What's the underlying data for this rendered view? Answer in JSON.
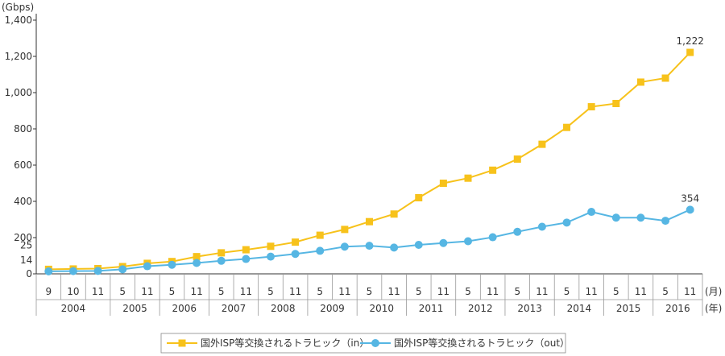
{
  "chart_data": {
    "type": "line",
    "ylabel": "(Gbps)",
    "ylim": [
      0,
      1400
    ],
    "yticks": [
      0,
      200,
      400,
      600,
      800,
      "1,000",
      "1,200",
      "1,400"
    ],
    "month_unit": "(月)",
    "year_unit": "(年)",
    "grid": false,
    "legend_position": "bottom",
    "x": [
      "9",
      "10",
      "11",
      "5",
      "11",
      "5",
      "11",
      "5",
      "11",
      "5",
      "11",
      "5",
      "11",
      "5",
      "11",
      "5",
      "11",
      "5",
      "11",
      "5",
      "11",
      "5",
      "11",
      "5",
      "11",
      "5",
      "11"
    ],
    "years": [
      {
        "label": "2004",
        "count": 3
      },
      {
        "label": "2005",
        "count": 2
      },
      {
        "label": "2006",
        "count": 2
      },
      {
        "label": "2007",
        "count": 2
      },
      {
        "label": "2008",
        "count": 2
      },
      {
        "label": "2009",
        "count": 2
      },
      {
        "label": "2010",
        "count": 2
      },
      {
        "label": "2011",
        "count": 2
      },
      {
        "label": "2012",
        "count": 2
      },
      {
        "label": "2013",
        "count": 2
      },
      {
        "label": "2014",
        "count": 2
      },
      {
        "label": "2015",
        "count": 2
      },
      {
        "label": "2016",
        "count": 2
      }
    ],
    "series": [
      {
        "name": "国外ISP等交換されるトラヒック（in）",
        "color": "#f7c21b",
        "marker": "square",
        "values": [
          25,
          27,
          29,
          40,
          58,
          68,
          95,
          116,
          133,
          152,
          175,
          213,
          245,
          288,
          330,
          420,
          500,
          528,
          572,
          633,
          715,
          808,
          922,
          940,
          1058,
          1080,
          1222
        ],
        "labels": [
          {
            "index": 0,
            "text": "25"
          },
          {
            "index": 26,
            "text": "1,222"
          }
        ]
      },
      {
        "name": "国外ISP等交換されるトラヒック（out）",
        "color": "#56b6e3",
        "marker": "circle",
        "values": [
          14,
          15,
          16,
          25,
          42,
          50,
          60,
          72,
          82,
          95,
          110,
          127,
          150,
          155,
          145,
          160,
          170,
          180,
          202,
          232,
          260,
          283,
          342,
          310,
          310,
          293,
          354
        ],
        "labels": [
          {
            "index": 0,
            "text": "14"
          },
          {
            "index": 26,
            "text": "354"
          }
        ]
      }
    ]
  }
}
